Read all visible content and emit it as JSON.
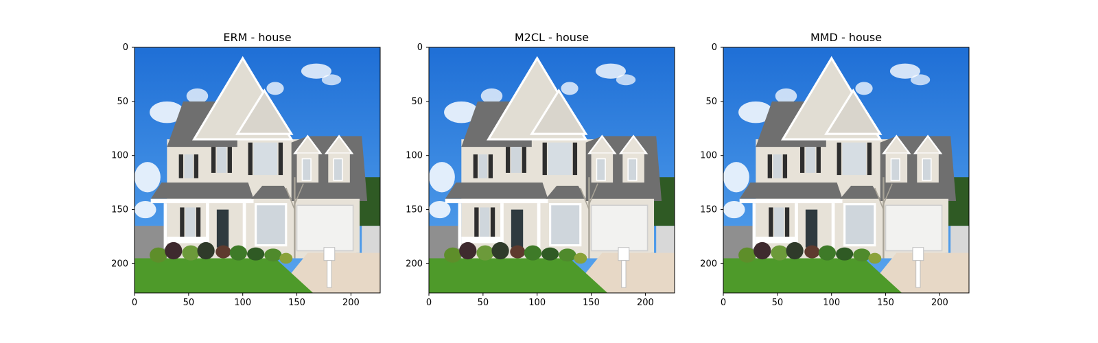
{
  "figure": {
    "panels": [
      {
        "title": "ERM - house"
      },
      {
        "title": "M2CL - house"
      },
      {
        "title": "MMD - house"
      }
    ]
  },
  "colors": {
    "sky_top": "#1f6fd6",
    "sky_bottom": "#5aa6ee",
    "siding": "#e7e2d8",
    "roof": "#6f6f6f",
    "trim": "#ffffff",
    "shutter": "#2e2e2e",
    "grass": "#4e9a2a",
    "shrubs": "#2f5a24",
    "driveway": "#e7d8c6",
    "fence": "#8f8f8f",
    "door": "#2f3a3f",
    "garage": "#f2f2f0"
  },
  "chart_data": [
    {
      "type": "image",
      "title": "ERM - house",
      "xticks": [
        0,
        50,
        100,
        150,
        200
      ],
      "yticks": [
        0,
        50,
        100,
        150,
        200
      ],
      "xlim": [
        0,
        227
      ],
      "ylim": [
        227,
        0
      ],
      "image_subject": "house"
    },
    {
      "type": "image",
      "title": "M2CL - house",
      "xticks": [
        0,
        50,
        100,
        150,
        200
      ],
      "yticks": [
        0,
        50,
        100,
        150,
        200
      ],
      "xlim": [
        0,
        227
      ],
      "ylim": [
        227,
        0
      ],
      "image_subject": "house"
    },
    {
      "type": "image",
      "title": "MMD - house",
      "xticks": [
        0,
        50,
        100,
        150,
        200
      ],
      "yticks": [
        0,
        50,
        100,
        150,
        200
      ],
      "xlim": [
        0,
        227
      ],
      "ylim": [
        227,
        0
      ],
      "image_subject": "house"
    }
  ]
}
